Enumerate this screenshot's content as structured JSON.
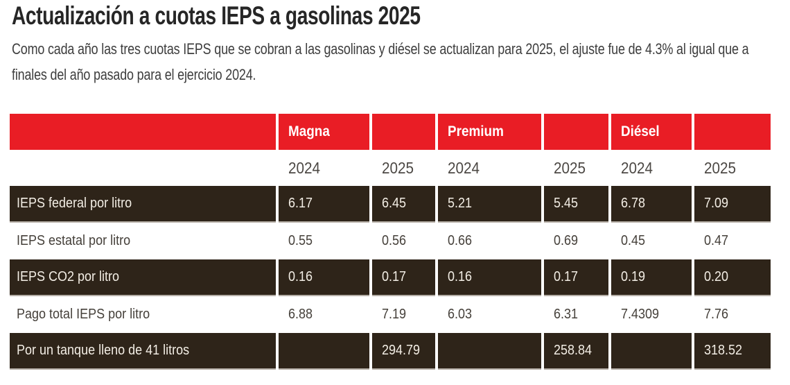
{
  "page": {
    "title": "Actualización a cuotas IEPS a gasolinas 2025",
    "subtitle": "Como cada año las tres cuotas IEPS que se cobran a las gasolinas y diésel se actualizan para 2025, el ajuste fue de 4.3% al igual que a finales del año pasado para el ejercicio 2024."
  },
  "colors": {
    "header_red": "#e91d25",
    "row_dark_brown": "#2e2419",
    "row_light_bg": "#ffffff",
    "dark_row_text": "#f3eee5",
    "light_row_text": "#45403a",
    "year_text": "#4c4844"
  },
  "chart_data": {
    "type": "table",
    "title": "Actualización a cuotas IEPS a gasolinas 2025",
    "subtitle": "Como cada año las tres cuotas IEPS que se cobran a las gasolinas y diésel se actualizan para 2025, el ajuste fue de 4.3% al igual que a finales del año pasado para el ejercicio 2024.",
    "adjustment_pct_mentioned": "4.3%",
    "column_groups": [
      "Magna",
      "Premium",
      "Diésel"
    ],
    "year_columns": [
      "2024",
      "2025",
      "2024",
      "2025",
      "2024",
      "2025"
    ],
    "rows": [
      {
        "label": "IEPS federal por litro",
        "style": "dark",
        "values": [
          "6.17",
          "6.45",
          "5.21",
          "5.45",
          "6.78",
          "7.09"
        ]
      },
      {
        "label": "IEPS estatal por litro",
        "style": "light",
        "values": [
          "0.55",
          "0.56",
          "0.66",
          "0.69",
          "0.45",
          "0.47"
        ]
      },
      {
        "label": "IEPS CO2 por litro",
        "style": "dark",
        "values": [
          "0.16",
          "0.17",
          "0.16",
          "0.17",
          "0.19",
          "0.20"
        ]
      },
      {
        "label": "Pago total IEPS por litro",
        "style": "light",
        "values": [
          "6.88",
          "7.19",
          "6.03",
          "6.31",
          "7.4309",
          "7.76"
        ]
      },
      {
        "label": "Por un tanque lleno de 41 litros",
        "style": "dark",
        "values": [
          "",
          "294.79",
          "",
          "258.84",
          "",
          "318.52"
        ]
      }
    ]
  }
}
